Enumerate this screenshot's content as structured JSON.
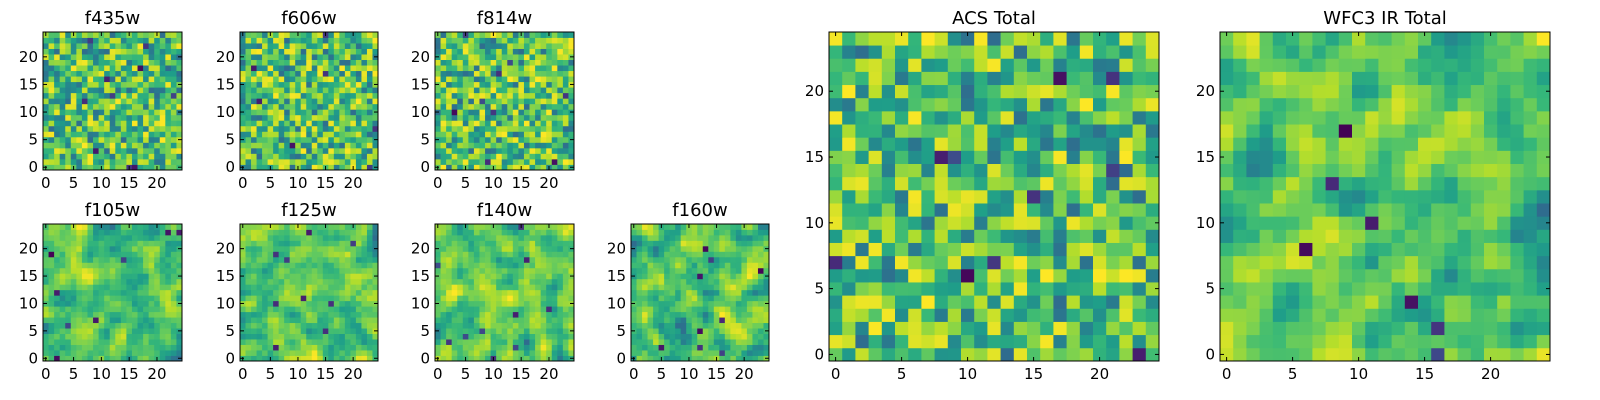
{
  "chart_data": {
    "type": "heatmap",
    "colormap": "viridis",
    "grid_size": 25,
    "panels": [
      {
        "id": "f435w",
        "title": "f435w",
        "xticks": [
          0,
          5,
          10,
          15,
          20
        ],
        "yticks": [
          0,
          5,
          10,
          15,
          20
        ],
        "seed": 11,
        "smooth": 0
      },
      {
        "id": "f606w",
        "title": "f606w",
        "xticks": [
          0,
          5,
          10,
          15,
          20
        ],
        "yticks": [
          0,
          5,
          10,
          15,
          20
        ],
        "seed": 23,
        "smooth": 0
      },
      {
        "id": "f814w",
        "title": "f814w",
        "xticks": [
          0,
          5,
          10,
          15,
          20
        ],
        "yticks": [
          0,
          5,
          10,
          15,
          20
        ],
        "seed": 37,
        "smooth": 0
      },
      {
        "id": "f105w",
        "title": "f105w",
        "xticks": [
          0,
          5,
          10,
          15,
          20
        ],
        "yticks": [
          0,
          5,
          10,
          15,
          20
        ],
        "seed": 41,
        "smooth": 1
      },
      {
        "id": "f125w",
        "title": "f125w",
        "xticks": [
          0,
          5,
          10,
          15,
          20
        ],
        "yticks": [
          0,
          5,
          10,
          15,
          20
        ],
        "seed": 53,
        "smooth": 1
      },
      {
        "id": "f140w",
        "title": "f140w",
        "xticks": [
          0,
          5,
          10,
          15,
          20
        ],
        "yticks": [
          0,
          5,
          10,
          15,
          20
        ],
        "seed": 67,
        "smooth": 1
      },
      {
        "id": "f160w",
        "title": "f160w",
        "xticks": [
          0,
          5,
          10,
          15,
          20
        ],
        "yticks": [
          0,
          5,
          10,
          15,
          20
        ],
        "seed": 79,
        "smooth": 1
      },
      {
        "id": "acs-total",
        "title": "ACS Total",
        "xticks": [
          0,
          5,
          10,
          15,
          20
        ],
        "yticks": [
          0,
          5,
          10,
          15,
          20
        ],
        "seed": 97,
        "smooth": 0
      },
      {
        "id": "wfc3-ir-total",
        "title": "WFC3 IR Total",
        "xticks": [
          0,
          5,
          10,
          15,
          20
        ],
        "yticks": [
          0,
          5,
          10,
          15,
          20
        ],
        "seed": 113,
        "smooth": 1
      }
    ]
  }
}
